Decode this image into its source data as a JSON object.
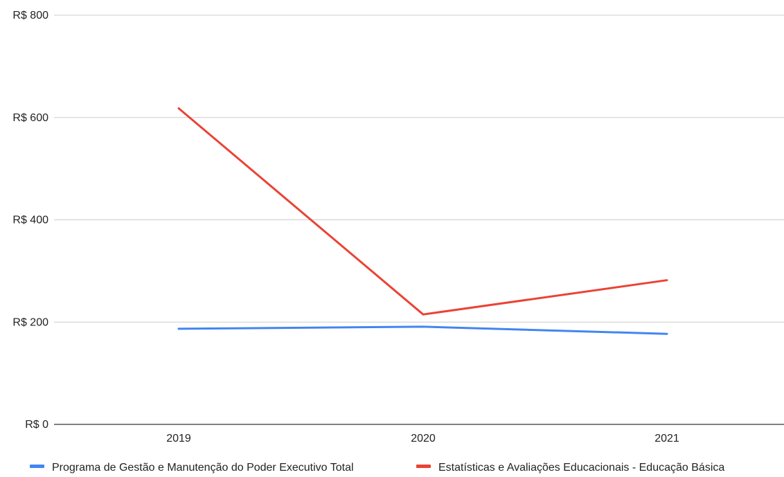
{
  "chart_data": {
    "type": "line",
    "title": "",
    "xlabel": "",
    "ylabel": "",
    "categories": [
      "2019",
      "2020",
      "2021"
    ],
    "ylim": [
      0,
      800
    ],
    "yticks": [
      0,
      200,
      400,
      600,
      800
    ],
    "ytick_labels": [
      "R$ 0",
      "R$ 200",
      "R$ 400",
      "R$ 600",
      "R$ 800"
    ],
    "grid": true,
    "legend_position": "bottom",
    "series": [
      {
        "name": "Programa de Gestão e Manutenção do Poder Executivo Total",
        "color": "#4285f4",
        "values": [
          187,
          191,
          177
        ]
      },
      {
        "name": "Estatísticas e Avaliações Educacionais - Educação Básica",
        "color": "#ea4335",
        "values": [
          618,
          215,
          282
        ]
      }
    ]
  }
}
